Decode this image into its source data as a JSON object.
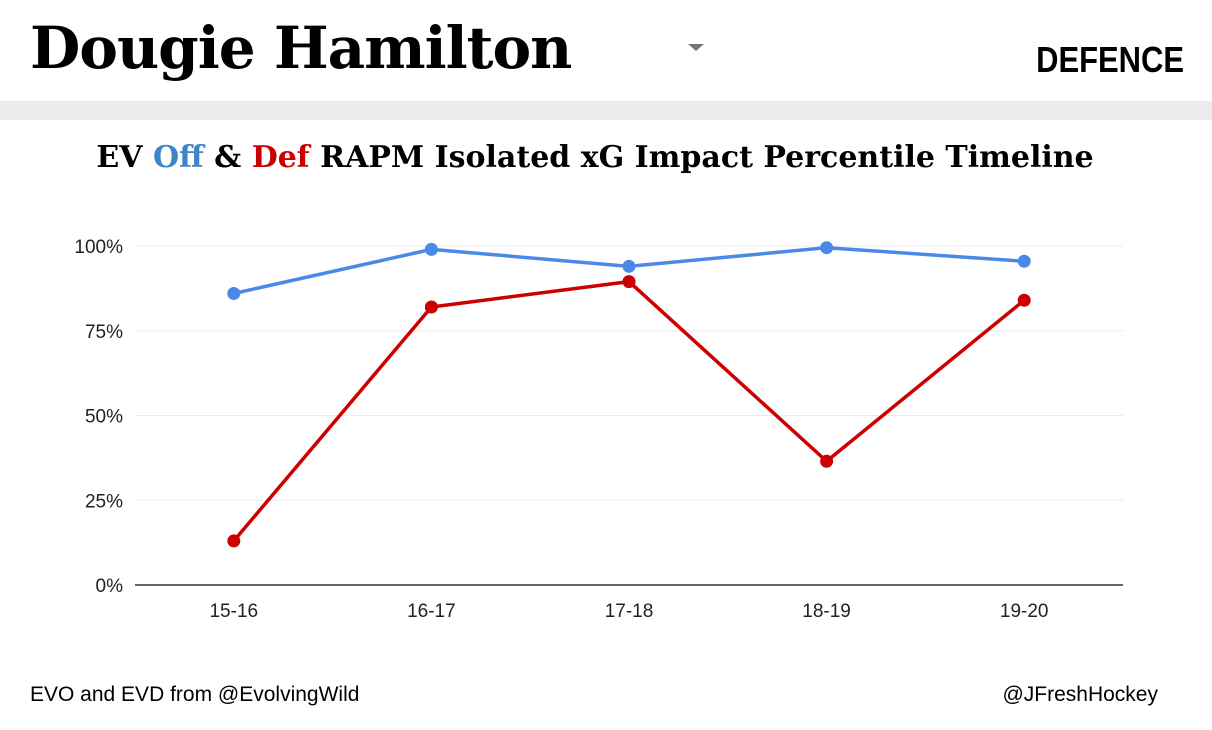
{
  "header": {
    "player_name": "Dougie Hamilton",
    "position": "DEFENCE"
  },
  "title": {
    "prefix": "EV ",
    "off": "Off",
    "amp": " & ",
    "def": "Def",
    "suffix": " RAPM Isolated xG Impact Percentile Timeline"
  },
  "footer": {
    "left": "EVO and EVD from @EvolvingWild",
    "right": "@JFreshHockey"
  },
  "colors": {
    "off": "#4a89e8",
    "def": "#cc0000",
    "grid": "#ebebeb",
    "axis": "#333333"
  },
  "chart_data": {
    "type": "line",
    "title": "EV Off & Def RAPM Isolated xG Impact Percentile Timeline",
    "categories": [
      "15-16",
      "16-17",
      "17-18",
      "18-19",
      "19-20"
    ],
    "series": [
      {
        "values": [
          86,
          99,
          94,
          99.5,
          95.5
        ]
      },
      {
        "values": [
          13,
          82,
          89.5,
          36.5,
          84
        ]
      }
    ],
    "ylim": [
      0,
      100
    ],
    "yticks": [
      0,
      25,
      50,
      75,
      100
    ],
    "ytick_labels": [
      "0%",
      "25%",
      "50%",
      "75%",
      "100%"
    ],
    "xlabel": "",
    "ylabel": "",
    "grid": true,
    "legend": "none"
  }
}
